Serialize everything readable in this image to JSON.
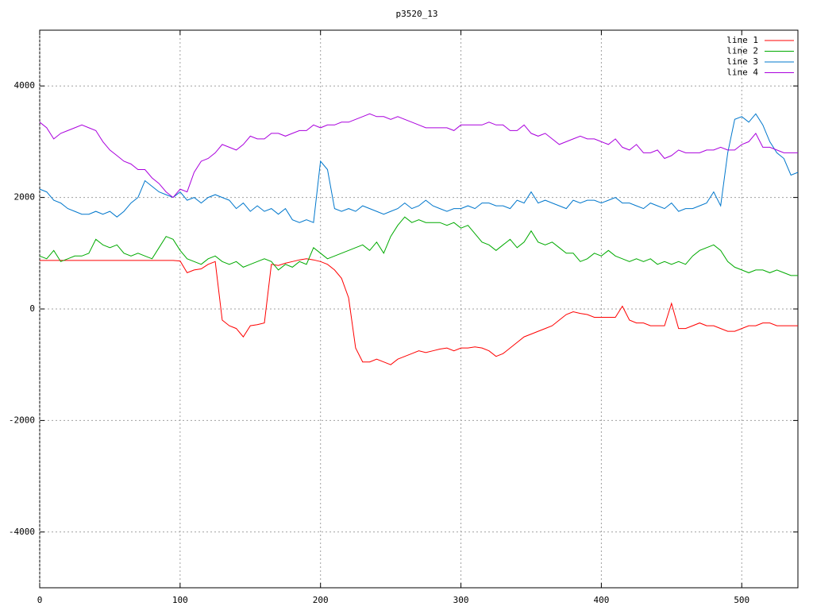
{
  "chart_data": {
    "type": "line",
    "title": "p3520_13",
    "x": [
      0,
      5,
      10,
      15,
      20,
      25,
      30,
      35,
      40,
      45,
      50,
      55,
      60,
      65,
      70,
      75,
      80,
      85,
      90,
      95,
      100,
      105,
      110,
      115,
      120,
      125,
      130,
      135,
      140,
      145,
      150,
      155,
      160,
      165,
      170,
      175,
      180,
      185,
      190,
      195,
      200,
      205,
      210,
      215,
      220,
      225,
      230,
      235,
      240,
      245,
      250,
      255,
      260,
      265,
      270,
      275,
      280,
      285,
      290,
      295,
      300,
      305,
      310,
      315,
      320,
      325,
      330,
      335,
      340,
      345,
      350,
      355,
      360,
      365,
      370,
      375,
      380,
      385,
      390,
      395,
      400,
      405,
      410,
      415,
      420,
      425,
      430,
      435,
      440,
      445,
      450,
      455,
      460,
      465,
      470,
      475,
      480,
      485,
      490,
      495,
      500,
      505,
      510,
      515,
      520,
      525,
      530,
      535,
      540
    ],
    "series": [
      {
        "name": "line 1",
        "color": "#ff0000",
        "values": [
          870,
          870,
          870,
          870,
          870,
          870,
          870,
          870,
          870,
          870,
          870,
          870,
          870,
          870,
          870,
          870,
          870,
          870,
          870,
          870,
          860,
          650,
          700,
          720,
          800,
          850,
          -200,
          -300,
          -350,
          -500,
          -300,
          -280,
          -250,
          800,
          780,
          820,
          850,
          880,
          900,
          880,
          850,
          800,
          700,
          550,
          200,
          -700,
          -950,
          -950,
          -900,
          -950,
          -1000,
          -900,
          -850,
          -800,
          -750,
          -780,
          -750,
          -720,
          -700,
          -750,
          -700,
          -700,
          -680,
          -700,
          -750,
          -850,
          -800,
          -700,
          -600,
          -500,
          -450,
          -400,
          -350,
          -300,
          -200,
          -100,
          -50,
          -80,
          -100,
          -150,
          -150,
          -150,
          -150,
          50,
          -200,
          -250,
          -250,
          -300,
          -300,
          -300,
          100,
          -350,
          -350,
          -300,
          -250,
          -300,
          -300,
          -350,
          -400,
          -400,
          -350,
          -300,
          -300,
          -250,
          -250,
          -300,
          -300,
          -300,
          -300
        ]
      },
      {
        "name": "line 2",
        "color": "#00aa00",
        "values": [
          950,
          900,
          1050,
          850,
          900,
          950,
          950,
          1000,
          1250,
          1150,
          1100,
          1150,
          1000,
          950,
          1000,
          950,
          900,
          1100,
          1300,
          1250,
          1050,
          900,
          850,
          800,
          900,
          950,
          850,
          800,
          850,
          750,
          800,
          850,
          900,
          850,
          700,
          800,
          750,
          850,
          800,
          1100,
          1000,
          900,
          950,
          1000,
          1050,
          1100,
          1150,
          1050,
          1200,
          1000,
          1300,
          1500,
          1650,
          1550,
          1600,
          1550,
          1550,
          1550,
          1500,
          1550,
          1450,
          1500,
          1350,
          1200,
          1150,
          1050,
          1150,
          1250,
          1100,
          1200,
          1400,
          1200,
          1150,
          1200,
          1100,
          1000,
          1000,
          850,
          900,
          1000,
          950,
          1050,
          950,
          900,
          850,
          900,
          850,
          900,
          800,
          850,
          800,
          850,
          800,
          950,
          1050,
          1100,
          1150,
          1050,
          850,
          750,
          700,
          650,
          700,
          700,
          650,
          700,
          650,
          600,
          600
        ]
      },
      {
        "name": "line 3",
        "color": "#0077cc",
        "values": [
          2150,
          2100,
          1950,
          1900,
          1800,
          1750,
          1700,
          1700,
          1750,
          1700,
          1750,
          1650,
          1750,
          1900,
          2000,
          2300,
          2200,
          2100,
          2050,
          2000,
          2100,
          1950,
          2000,
          1900,
          2000,
          2050,
          2000,
          1950,
          1800,
          1900,
          1750,
          1850,
          1750,
          1800,
          1700,
          1800,
          1600,
          1550,
          1600,
          1550,
          2650,
          2500,
          1800,
          1750,
          1800,
          1750,
          1850,
          1800,
          1750,
          1700,
          1750,
          1800,
          1900,
          1800,
          1850,
          1950,
          1850,
          1800,
          1750,
          1800,
          1800,
          1850,
          1800,
          1900,
          1900,
          1850,
          1850,
          1800,
          1950,
          1900,
          2100,
          1900,
          1950,
          1900,
          1850,
          1800,
          1950,
          1900,
          1950,
          1950,
          1900,
          1950,
          2000,
          1900,
          1900,
          1850,
          1800,
          1900,
          1850,
          1800,
          1900,
          1750,
          1800,
          1800,
          1850,
          1900,
          2100,
          1850,
          2800,
          3400,
          3450,
          3350,
          3500,
          3300,
          3000,
          2800,
          2700,
          2400,
          2450
        ]
      },
      {
        "name": "line 4",
        "color": "#aa00dd",
        "values": [
          3350,
          3250,
          3050,
          3150,
          3200,
          3250,
          3300,
          3250,
          3200,
          3000,
          2850,
          2750,
          2650,
          2600,
          2500,
          2500,
          2350,
          2250,
          2100,
          2000,
          2150,
          2100,
          2450,
          2650,
          2700,
          2800,
          2950,
          2900,
          2850,
          2950,
          3100,
          3050,
          3050,
          3150,
          3150,
          3100,
          3150,
          3200,
          3200,
          3300,
          3250,
          3300,
          3300,
          3350,
          3350,
          3400,
          3450,
          3500,
          3450,
          3450,
          3400,
          3450,
          3400,
          3350,
          3300,
          3250,
          3250,
          3250,
          3250,
          3200,
          3300,
          3300,
          3300,
          3300,
          3350,
          3300,
          3300,
          3200,
          3200,
          3300,
          3150,
          3100,
          3150,
          3050,
          2950,
          3000,
          3050,
          3100,
          3050,
          3050,
          3000,
          2950,
          3050,
          2900,
          2850,
          2950,
          2800,
          2800,
          2850,
          2700,
          2750,
          2850,
          2800,
          2800,
          2800,
          2850,
          2850,
          2900,
          2850,
          2850,
          2950,
          3000,
          3150,
          2900,
          2900,
          2850,
          2800,
          2800,
          2800
        ]
      }
    ],
    "xlim": [
      0,
      540
    ],
    "ylim": [
      -5000,
      5000
    ],
    "xticks": [
      0,
      100,
      200,
      300,
      400,
      500
    ],
    "yticks": [
      -4000,
      -2000,
      0,
      2000,
      4000
    ],
    "grid": true,
    "legend": "top-right"
  }
}
